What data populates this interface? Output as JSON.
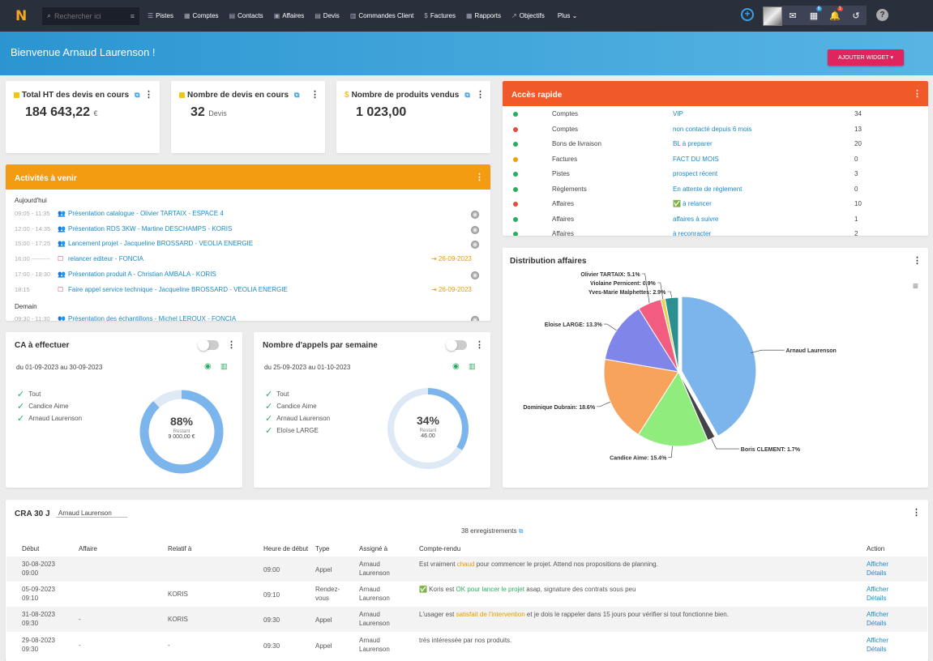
{
  "topbar": {
    "logo": "N",
    "search_placeholder": "Rechercher ici",
    "nav": [
      {
        "icon": "☰",
        "label": "Pistes"
      },
      {
        "icon": "▦",
        "label": "Comptes"
      },
      {
        "icon": "▤",
        "label": "Contacts"
      },
      {
        "icon": "▣",
        "label": "Affaires"
      },
      {
        "icon": "▤",
        "label": "Devis"
      },
      {
        "icon": "▥",
        "label": "Commandes Client"
      },
      {
        "icon": "$",
        "label": "Factures"
      },
      {
        "icon": "▦",
        "label": "Rapports"
      },
      {
        "icon": "↗",
        "label": "Objectifs"
      },
      {
        "icon": "",
        "label": "Plus ⌄"
      }
    ],
    "badges": {
      "calendar": "6",
      "notifications": "1"
    }
  },
  "banner": {
    "welcome": "Bienvenue Arnaud Laurenson !",
    "add_widget": "AJOUTER WIDGET ▾"
  },
  "kpis": [
    {
      "title": "Total HT des devis en cours",
      "value": "184 643,22",
      "unit": "€",
      "icon_color": "#f1c40f"
    },
    {
      "title": "Nombre de devis en cours",
      "value": "32",
      "unit": "Devis",
      "icon_color": "#f1c40f"
    },
    {
      "title": "Nombre de produits vendus",
      "value": "1 023,00",
      "unit": "",
      "icon": "$"
    }
  ],
  "activities": {
    "title": "Activités à venir",
    "color": "#f39c12",
    "section_today": "Aujourd'hui",
    "section_tomorrow": "Demain",
    "rows": [
      {
        "time": "09:05 - 11:35",
        "icon": "people",
        "label": "Présentation catalogue - Olivier TARTAIX - ESPACE 4",
        "due": ""
      },
      {
        "time": "12:00 - 14:35",
        "icon": "people",
        "label": "Présentation RDS 3KW - Martine DESCHAMPS - KORIS",
        "due": ""
      },
      {
        "time": "15:00 - 17:25",
        "icon": "people",
        "label": "Lancement projet - Jacqueline BROSSARD - VEOLIA ENERGIE",
        "due": ""
      },
      {
        "time": "16:00 ---------",
        "icon": "task",
        "label": "relancer editeur - FONCIA",
        "due": "⇥ 26-09-2023"
      },
      {
        "time": "17:00 - 18:30",
        "icon": "people",
        "label": "Présentation produit A - Christian AMBALA - KORIS",
        "due": ""
      },
      {
        "time": "18:15",
        "icon": "task",
        "label": "Faire appel service technique - Jacqueline BROSSARD - VEOLIA ENERGIE",
        "due": "⇥ 26-09-2023"
      }
    ],
    "tomorrow_rows": [
      {
        "time": "09:30 - 11:30",
        "icon": "people",
        "label": "Présentation des échantillons - Michel LEROUX - FONCIA"
      }
    ]
  },
  "quick_access": {
    "title": "Accès rapide",
    "color": "#f05a28",
    "rows": [
      {
        "status": "#27ae60",
        "name": "Comptes",
        "link": "VIP",
        "count": "34"
      },
      {
        "status": "#e74c3c",
        "name": "Comptes",
        "link": "non contacté depuis 6 mois",
        "count": "13"
      },
      {
        "status": "#27ae60",
        "name": "Bons de livraison",
        "link": "BL à preparer",
        "count": "20"
      },
      {
        "status": "#f39c12",
        "name": "Factures",
        "link": "FACT DU MOIS",
        "count": "0"
      },
      {
        "status": "#27ae60",
        "name": "Pistes",
        "link": "prospect récent",
        "count": "3"
      },
      {
        "status": "#27ae60",
        "name": "Règlements",
        "link": "En attente de règlement",
        "count": "0"
      },
      {
        "status": "#e74c3c",
        "name": "Affaires",
        "link": "✅ à relancer",
        "count": "10"
      },
      {
        "status": "#27ae60",
        "name": "Affaires",
        "link": "affaires à suivre",
        "count": "1"
      },
      {
        "status": "#27ae60",
        "name": "Affaires",
        "link": "à reconracter",
        "count": "2"
      }
    ]
  },
  "ca": {
    "title": "CA à effectuer",
    "period": "du 01-09-2023 au 30-09-2023",
    "checks": [
      "Tout",
      "Candice Aime",
      "Arnaud Laurenson"
    ],
    "percent": "88%",
    "percent_value": 0.88,
    "rest_label": "Restant",
    "rest_value": "9 000,00 €"
  },
  "calls": {
    "title": "Nombre d'appels par semaine",
    "period": "du 25-09-2023 au 01-10-2023",
    "checks": [
      "Tout",
      "Candice Aime",
      "Arnaud Laurenson",
      "Eloïse LARGE"
    ],
    "percent": "34%",
    "percent_value": 0.34,
    "rest_label": "Restant",
    "rest_value": "46.00"
  },
  "distribution": {
    "title": "Distribution affaires"
  },
  "chart_data": {
    "type": "pie",
    "title": "Distribution affaires",
    "slices": [
      {
        "label": "Arnaud Laurenson",
        "value": 41.7,
        "color": "#7cb5ec"
      },
      {
        "label": "Boris CLEMENT",
        "value": 1.7,
        "color": "#434348"
      },
      {
        "label": "Candice Aime",
        "value": 15.4,
        "color": "#90ed7d"
      },
      {
        "label": "Dominique Dubrain",
        "value": 18.6,
        "color": "#f7a35c"
      },
      {
        "label": "Eloise LARGE",
        "value": 13.3,
        "color": "#8085e9"
      },
      {
        "label": "Olivier TARTAIX",
        "value": 5.1,
        "color": "#f15c80"
      },
      {
        "label": "Violaine Pernicent",
        "value": 0.9,
        "color": "#e4d354"
      },
      {
        "label": "Yves-Marie Malphettes",
        "value": 2.9,
        "color": "#2b908f"
      }
    ],
    "data_labels": [
      "Arnaud Laurenson",
      "Boris CLEMENT: 1.7%",
      "Candice Aime: 15.4%",
      "Dominique Dubrain: 18.6%",
      "Eloise LARGE: 13.3%",
      "Olivier TARTAIX: 5.1%",
      "Violaine Pernicent: 0.9%",
      "Yves-Marie Malphettes: 2.9%"
    ]
  },
  "cra": {
    "title": "CRA 30 J",
    "user": "Arnaud Laurenson",
    "records": "38 enregistrements",
    "headers": [
      "Début",
      "Affaire",
      "Relatif à",
      "Heure de début",
      "Type",
      "Assigné à",
      "Compte-rendu",
      "Action"
    ],
    "rows": [
      {
        "date": "30-08-2023",
        "time": "09:00",
        "affaire": "",
        "relatif": "",
        "heure": "09:00",
        "type": "Appel",
        "assigne": "Arnaud Laurenson",
        "cr_pre": "Est vraiment ",
        "cr_hl": "chaud",
        "cr_post": " pour commencer le projet. Attend nos propositions de planning.",
        "hl_class": "hl-o"
      },
      {
        "date": "05-09-2023",
        "time": "09:10",
        "affaire": "",
        "relatif": "KORIS",
        "heure": "09:10",
        "type": "Rendez-vous",
        "assigne": "Arnaud Laurenson",
        "cr_pre": "✅ Koris est ",
        "cr_hl": "OK pour lancer le projet",
        "cr_post": " asap, signature des contrats sous peu",
        "hl_class": "hl-g"
      },
      {
        "date": "31-08-2023",
        "time": "09:30",
        "affaire": "-",
        "relatif": "KORIS",
        "heure": "09:30",
        "type": "Appel",
        "assigne": "Arnaud Laurenson",
        "cr_pre": "L'usager est ",
        "cr_hl": "satisfait de l'intervention",
        "cr_post": " et je dois le rappeler dans 15 jours pour vérifier si tout fonctionne bien.",
        "hl_class": "hl-o"
      },
      {
        "date": "29-08-2023",
        "time": "09:30",
        "affaire": "-",
        "relatif": "-",
        "heure": "09:30",
        "type": "Appel",
        "assigne": "Arnaud Laurenson",
        "cr_pre": "très intéressée par nos produits.",
        "cr_hl": "",
        "cr_post": "",
        "hl_class": ""
      }
    ],
    "action1": "Afficher",
    "action2": "Détails"
  }
}
